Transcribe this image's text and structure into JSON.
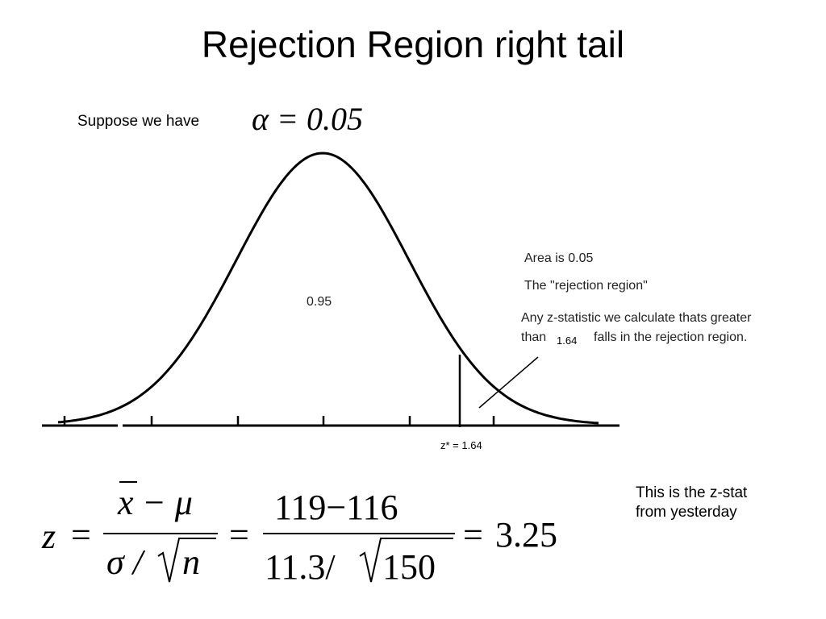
{
  "title": "Rejection Region right tail",
  "intro": {
    "text": "Suppose we have",
    "alpha": "α = 0.05"
  },
  "graph": {
    "center_area": "0.95",
    "note_area": "Area is 0.05",
    "note_region": "The \"rejection region\"",
    "note_line1": "Any z-statistic we calculate thats greater",
    "note_than": "than",
    "note_value": "1.64",
    "note_rest": "falls in the rejection region.",
    "critical_label": "z* = 1.64"
  },
  "formula": {
    "variable": "z",
    "equals": "=",
    "bar": "x",
    "minus_mu": "− μ",
    "sigma": "σ /",
    "n": "n",
    "num_values": "119−116",
    "den_values": "11.3/",
    "den_root": "150",
    "result": "3.25"
  },
  "side_note": "This is the z-stat from yesterday"
}
